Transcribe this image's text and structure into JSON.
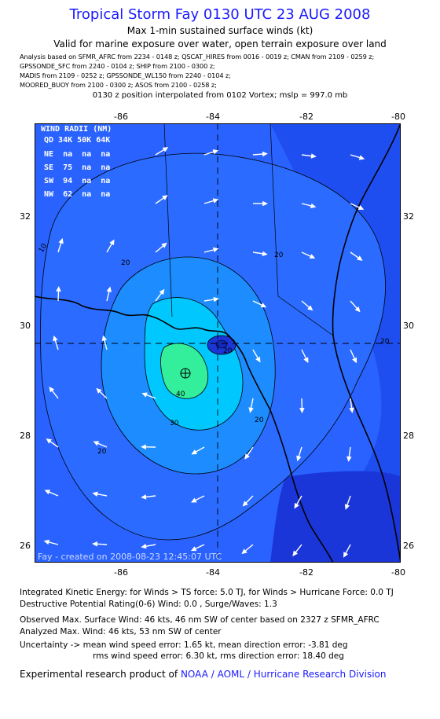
{
  "header": {
    "title": "Tropical Storm Fay 0130 UTC 23 AUG 2008",
    "subtitle1": "Max 1-min sustained surface winds (kt)",
    "subtitle2": "Valid for marine exposure over water, open terrain exposure over land",
    "analysis_lines": [
      "Analysis based on  SFMR_AFRC from 2234 - 0148 z;  QSCAT_HIRES from 0016 - 0019 z;  CMAN from 2109 - 0259 z;",
      "GPSSONDE_SFC from 2240 - 0104 z;  SHIP from 2100 - 0300 z;",
      "MADIS from 2109 - 0252 z;  GPSSONDE_WL150 from 2240 - 0104 z;",
      "MOORED_BUOY from 2100 - 0300 z;  ASOS from 2100 - 0258 z;"
    ],
    "position_note": "0130 z position interpolated from 0102 Vortex; mslp = 997.0 mb"
  },
  "axes": {
    "x_ticks": [
      "-86",
      "-84",
      "-82",
      "-80"
    ],
    "y_ticks": [
      "32",
      "30",
      "28",
      "26"
    ]
  },
  "wind_radii": {
    "title": "WIND RADII (NM)",
    "header": "QD 34K 50K 64K",
    "rows": [
      "NE  na  na  na",
      "SE  75  na  na",
      "SW  94  na  na",
      "NW  62  na  na"
    ]
  },
  "contour_labels": [
    "10",
    "20",
    "20",
    "20",
    "20",
    "20",
    "30",
    "40",
    "20"
  ],
  "map_footer": "Fay - created on 2008-08-23 12:45:07 UTC",
  "colors": {
    "title": "#1a1aff",
    "bg_light": "#2a62ff",
    "bg_mid": "#1e4ef0",
    "bg_dark": "#1a36d8",
    "level20": "#1d8cff",
    "level30": "#00c8ff",
    "level40": "#33ee9a"
  },
  "footer": {
    "ike": "Integrated Kinetic Energy:  for Winds > TS force: 5.0 TJ,  for Winds > Hurricane Force: 0.0 TJ",
    "dpr": "Destructive Potential Rating(0-6)   Wind: 0.0 , Surge/Waves: 1.3",
    "obs_max": "Observed Max. Surface Wind: 46 kts, 46 nm SW of center based on 2327 z SFMR_AFRC",
    "analyzed_max": "Analyzed Max. Wind: 46 kts, 53 nm SW of center",
    "uncertainty1": "Uncertainty -> mean wind speed error: 1.65 kt,   mean direction error:  -3.81 deg",
    "uncertainty2": "rms wind speed error: 6.30 kt,   rms direction error: 18.40 deg",
    "credit_prefix": "Experimental research product of",
    "credit_link": "NOAA / AOML / Hurricane Research Division"
  }
}
